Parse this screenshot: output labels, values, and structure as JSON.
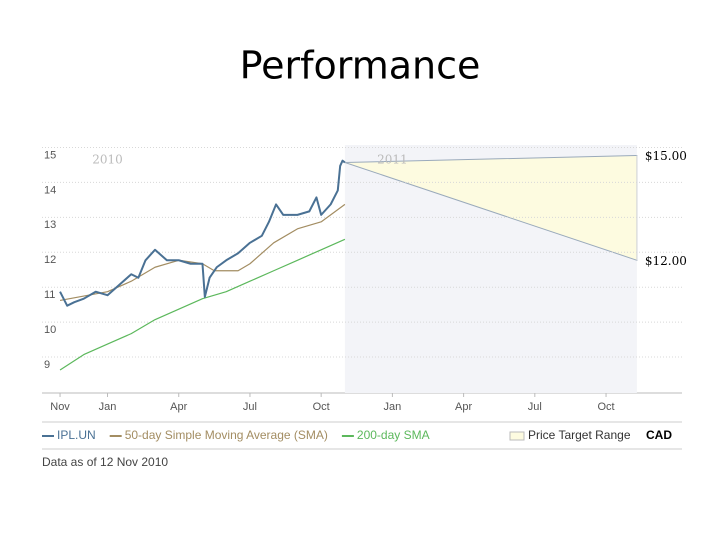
{
  "chart_data": {
    "type": "line",
    "title": "Performance",
    "xlim": [
      -0.76,
      26.2
    ],
    "ylim": [
      8.2,
      15.3
    ],
    "yticks": [
      9,
      10,
      11,
      12,
      13,
      14,
      15
    ],
    "xticks": [
      {
        "value": 0,
        "label": "Nov"
      },
      {
        "value": 2,
        "label": "Jan"
      },
      {
        "value": 5,
        "label": "Apr"
      },
      {
        "value": 8,
        "label": "Jul"
      },
      {
        "value": 11,
        "label": "Oct"
      },
      {
        "value": 14,
        "label": "Jan"
      },
      {
        "value": 17,
        "label": "Apr"
      },
      {
        "value": 20,
        "label": "Jul"
      },
      {
        "value": 23,
        "label": "Oct"
      }
    ],
    "year_labels": [
      {
        "value": 2,
        "label": "2010"
      },
      {
        "value": 14,
        "label": "2011"
      }
    ],
    "grid": true,
    "series": [
      {
        "name": "IPL.UN",
        "color": "#4a7194",
        "x": [
          0,
          0.3,
          0.6,
          1.0,
          1.5,
          2,
          2.5,
          3,
          3.3,
          3.6,
          4,
          4.5,
          5,
          5.5,
          6,
          6.1,
          6.3,
          6.6,
          7,
          7.5,
          8,
          8.5,
          8.8,
          9.1,
          9.4,
          10,
          10.5,
          10.8,
          11,
          11.4,
          11.7,
          11.8,
          11.9,
          12
        ],
        "values": [
          11.1,
          10.7,
          10.8,
          10.9,
          11.1,
          11.0,
          11.3,
          11.6,
          11.5,
          12.0,
          12.3,
          12.0,
          12.0,
          11.9,
          11.9,
          10.95,
          11.5,
          11.8,
          12.0,
          12.2,
          12.5,
          12.7,
          13.1,
          13.6,
          13.3,
          13.3,
          13.4,
          13.8,
          13.3,
          13.6,
          14.0,
          14.7,
          14.85,
          14.8
        ]
      },
      {
        "name": "50-day Simple Moving Average (SMA)",
        "color": "#a38d62",
        "x": [
          0,
          2,
          3,
          4,
          5,
          6,
          6.5,
          7.5,
          8,
          9,
          10,
          11,
          12
        ],
        "values": [
          10.85,
          11.1,
          11.4,
          11.8,
          12.0,
          11.9,
          11.7,
          11.7,
          11.9,
          12.5,
          12.9,
          13.1,
          13.6
        ]
      },
      {
        "name": "200-day SMA",
        "color": "#5cb85c",
        "x": [
          0,
          1,
          2,
          3,
          4,
          5,
          6,
          7,
          8,
          9,
          10,
          11,
          12
        ],
        "values": [
          8.86,
          9.3,
          9.6,
          9.9,
          10.3,
          10.6,
          10.9,
          11.1,
          11.4,
          11.7,
          12.0,
          12.3,
          12.6
        ]
      }
    ],
    "target": {
      "name": "Price Target Range",
      "values": [
        15,
        12
      ],
      "value_labels": [
        "$15.00",
        "$12.00"
      ],
      "x_end": 24.3,
      "color": "#fdfbe0"
    },
    "currency": "CAD",
    "note": "Data as of 12 Nov 2010"
  }
}
